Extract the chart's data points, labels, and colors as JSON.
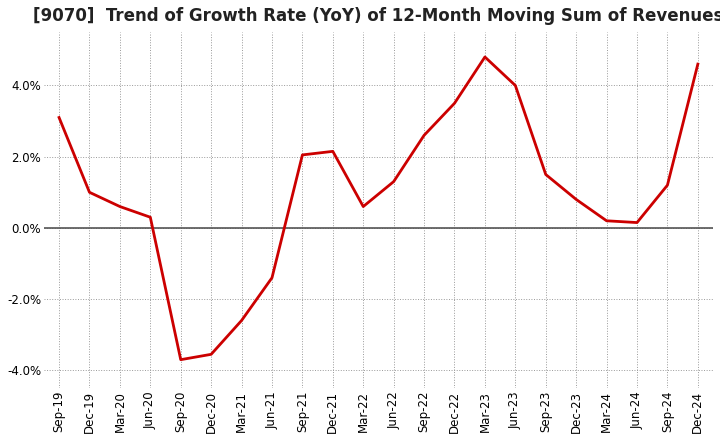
{
  "title": "[9070]  Trend of Growth Rate (YoY) of 12-Month Moving Sum of Revenues",
  "line_color": "#cc0000",
  "background_color": "#ffffff",
  "plot_background_color": "#ffffff",
  "grid_color": "#999999",
  "zero_line_color": "#555555",
  "x_labels": [
    "Sep-19",
    "Dec-19",
    "Mar-20",
    "Jun-20",
    "Sep-20",
    "Dec-20",
    "Mar-21",
    "Jun-21",
    "Sep-21",
    "Dec-21",
    "Mar-22",
    "Jun-22",
    "Sep-22",
    "Dec-22",
    "Mar-23",
    "Jun-23",
    "Sep-23",
    "Dec-23",
    "Mar-24",
    "Jun-24",
    "Sep-24",
    "Dec-24"
  ],
  "y_values": [
    3.1,
    1.0,
    0.6,
    0.3,
    -3.7,
    -3.55,
    -2.6,
    -1.4,
    2.05,
    2.15,
    0.6,
    1.3,
    2.6,
    3.5,
    4.8,
    4.0,
    1.5,
    0.8,
    0.2,
    0.15,
    1.2,
    4.6
  ],
  "ylim": [
    -4.5,
    5.5
  ],
  "yticks": [
    -4.0,
    -2.0,
    0.0,
    2.0,
    4.0
  ],
  "title_fontsize": 12,
  "tick_fontsize": 8.5,
  "line_width": 2.0
}
